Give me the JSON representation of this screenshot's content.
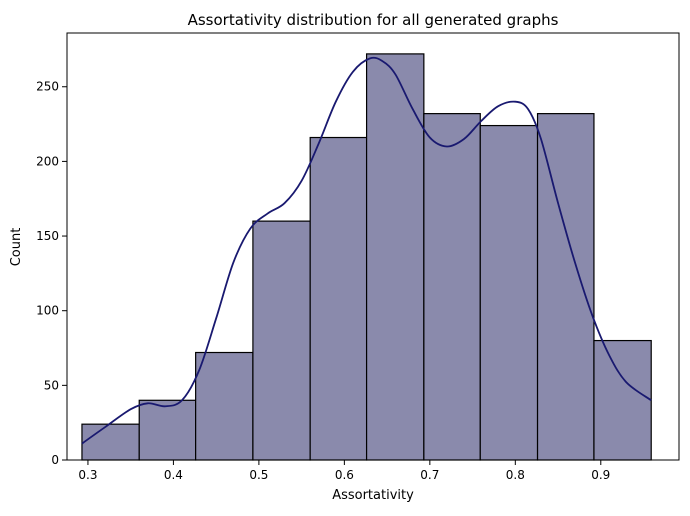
{
  "chart_data": {
    "type": "bar",
    "title": "Assortativity distribution for all generated graphs",
    "xlabel": "Assortativity",
    "ylabel": "Count",
    "xlim": [
      0.2755,
      0.9915
    ],
    "ylim": [
      0,
      286
    ],
    "xticks": [
      0.3,
      0.4,
      0.5,
      0.6,
      0.7,
      0.8,
      0.9
    ],
    "xtick_labels": [
      "0.3",
      "0.4",
      "0.5",
      "0.6",
      "0.7",
      "0.8",
      "0.9"
    ],
    "yticks": [
      0,
      50,
      100,
      150,
      200,
      250
    ],
    "ytick_labels": [
      "0",
      "50",
      "100",
      "150",
      "200",
      "250"
    ],
    "bins": [
      {
        "x0": 0.293,
        "x1": 0.36,
        "count": 24
      },
      {
        "x0": 0.36,
        "x1": 0.426,
        "count": 40
      },
      {
        "x0": 0.426,
        "x1": 0.493,
        "count": 72
      },
      {
        "x0": 0.493,
        "x1": 0.56,
        "count": 160
      },
      {
        "x0": 0.56,
        "x1": 0.626,
        "count": 216
      },
      {
        "x0": 0.626,
        "x1": 0.693,
        "count": 272
      },
      {
        "x0": 0.693,
        "x1": 0.759,
        "count": 232
      },
      {
        "x0": 0.759,
        "x1": 0.826,
        "count": 224
      },
      {
        "x0": 0.826,
        "x1": 0.892,
        "count": 232
      },
      {
        "x0": 0.892,
        "x1": 0.959,
        "count": 80
      }
    ],
    "kde": {
      "x": [
        0.293,
        0.32,
        0.35,
        0.37,
        0.39,
        0.41,
        0.43,
        0.45,
        0.47,
        0.49,
        0.51,
        0.53,
        0.55,
        0.57,
        0.59,
        0.61,
        0.63,
        0.645,
        0.66,
        0.68,
        0.7,
        0.72,
        0.74,
        0.76,
        0.78,
        0.8,
        0.815,
        0.83,
        0.85,
        0.87,
        0.89,
        0.91,
        0.93,
        0.959
      ],
      "y": [
        11,
        22,
        34,
        38,
        36,
        40,
        60,
        95,
        132,
        155,
        165,
        172,
        187,
        212,
        240,
        260,
        269,
        267,
        258,
        235,
        216,
        210,
        215,
        227,
        237,
        240,
        235,
        215,
        172,
        132,
        97,
        70,
        52,
        40
      ]
    },
    "colors": {
      "bar_fill": "#8a8aac",
      "bar_edge": "#000000",
      "line": "#191970"
    },
    "grid": false
  }
}
